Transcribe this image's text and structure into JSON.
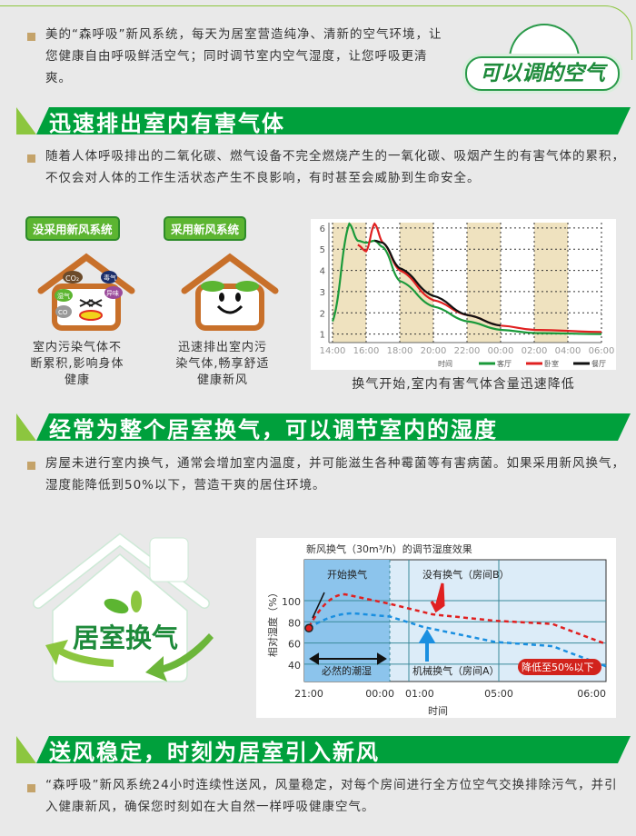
{
  "intro": {
    "text": "美的“森呼吸”新风系统，每天为居室营造纯净、清新的空气环境，让您健康自由呼吸鲜活空气；同时调节室内空气湿度，让您呼吸更清爽。",
    "badge": "可以调的空气"
  },
  "section1": {
    "title": "迅速排出室内有害气体",
    "text": "随着人体呼吸排出的二氧化碳、燃气设备不完全燃烧产生的一氧化碳、吸烟产生的有害气体的累积，不仅会对人体的工作生活状态产生不良影响，有时甚至会威胁到生命安全。",
    "house_bad": {
      "tag": "没采用新风系统",
      "caption": "室内污染气体不断累积,影响身体健康",
      "bubbles": [
        "CO₂",
        "湿气",
        "毒气",
        "异味",
        "CO"
      ]
    },
    "house_good": {
      "tag": "采用新风系统",
      "caption": "迅速排出室内污染气体,畅享舒适健康新风"
    },
    "chart_caption": "换气开始,室内有害气体含量迅速降低"
  },
  "section2": {
    "title": "经常为整个居室换气，可以调节室内的湿度",
    "text": "房屋未进行室内换气，通常会增加室内温度，并可能滋生各种霉菌等有害病菌。如果采用新风换气，湿度能降低到50%以下，营造干爽的居住环境。",
    "logo": "居室换气"
  },
  "section3": {
    "title": "送风稳定，时刻为居室引入新风",
    "text": "“森呼吸”新风系统24小时连续性送风，风量稳定，对每个房间进行全方位空气交换排除污气，并引入健康新风，确保您时刻如在大自然一样呼吸健康空气。"
  },
  "colors": {
    "green": "#00a03c",
    "light_green": "#8cc63f",
    "tan": "#c4a36a"
  },
  "chart_data": [
    {
      "type": "line",
      "title": "",
      "xlabel": "时间",
      "ylabel": "",
      "ylim": [
        1,
        6
      ],
      "x_ticks": [
        "14:00",
        "16:00",
        "18:00",
        "20:00",
        "22:00",
        "00:00",
        "02:00",
        "04:00",
        "06:00"
      ],
      "y_ticks": [
        1,
        2,
        3,
        4,
        5,
        6
      ],
      "grid": true,
      "shaded_bands": [
        [
          "14:00",
          "16:00"
        ],
        [
          "18:00",
          "20:00"
        ],
        [
          "22:00",
          "00:00"
        ],
        [
          "02:00",
          "04:00"
        ]
      ],
      "legend_placement": "bottom",
      "series": [
        {
          "name": "客厅",
          "color": "#1a9a3a",
          "points": [
            [
              "14:00",
              1.6
            ],
            [
              "15:00",
              6.2
            ],
            [
              "15:30",
              5.4
            ],
            [
              "16:00",
              5.3
            ],
            [
              "16:30",
              5.4
            ],
            [
              "17:00",
              5.1
            ],
            [
              "18:00",
              3.5
            ],
            [
              "20:00",
              2.3
            ],
            [
              "22:00",
              1.6
            ],
            [
              "00:00",
              1.2
            ],
            [
              "02:00",
              1.05
            ],
            [
              "06:00",
              1.0
            ]
          ]
        },
        {
          "name": "卧室",
          "color": "#e02020",
          "points": [
            [
              "15:30",
              5.2
            ],
            [
              "16:00",
              4.9
            ],
            [
              "16:30",
              6.2
            ],
            [
              "17:00",
              5.3
            ],
            [
              "18:00",
              4.0
            ],
            [
              "20:00",
              2.6
            ],
            [
              "22:00",
              1.9
            ],
            [
              "00:00",
              1.4
            ],
            [
              "02:00",
              1.2
            ],
            [
              "06:00",
              1.1
            ]
          ]
        },
        {
          "name": "餐厅",
          "color": "#111111",
          "points": [
            [
              "16:30",
              5.4
            ],
            [
              "17:00",
              5.3
            ],
            [
              "18:00",
              4.1
            ],
            [
              "20:00",
              2.8
            ],
            [
              "22:00",
              1.9
            ],
            [
              "00:00",
              1.4
            ]
          ]
        }
      ]
    },
    {
      "type": "line",
      "title": "新风换气（30m³/h）的调节湿度效果",
      "xlabel": "时间",
      "ylabel": "相对湿度（%）",
      "x_ticks": [
        "21:00",
        "00:00",
        "01:00",
        "05:00",
        "06:00"
      ],
      "y_ticks": [
        40,
        60,
        80,
        100
      ],
      "grid": true,
      "annotations": [
        "开始换气",
        "没有换气（房间B）",
        "机械换气（房间A）",
        "必然的潮湿",
        "降低至50%以下"
      ],
      "series": [
        {
          "name": "没有换气（房间B）",
          "color": "#e02020",
          "points": [
            [
              "21:00",
              75
            ],
            [
              "22:20",
              106
            ],
            [
              "00:00",
              97
            ],
            [
              "02:04",
              87
            ],
            [
              "04:50",
              81
            ],
            [
              "05:30",
              78
            ],
            [
              "06:00",
              59
            ]
          ]
        },
        {
          "name": "机械换气（房间A）",
          "color": "#1a8fe0",
          "points": [
            [
              "21:00",
              74
            ],
            [
              "22:40",
              88
            ],
            [
              "00:00",
              85
            ],
            [
              "01:40",
              75
            ],
            [
              "04:50",
              61
            ],
            [
              "05:30",
              57
            ],
            [
              "06:00",
              38
            ]
          ]
        }
      ]
    }
  ]
}
